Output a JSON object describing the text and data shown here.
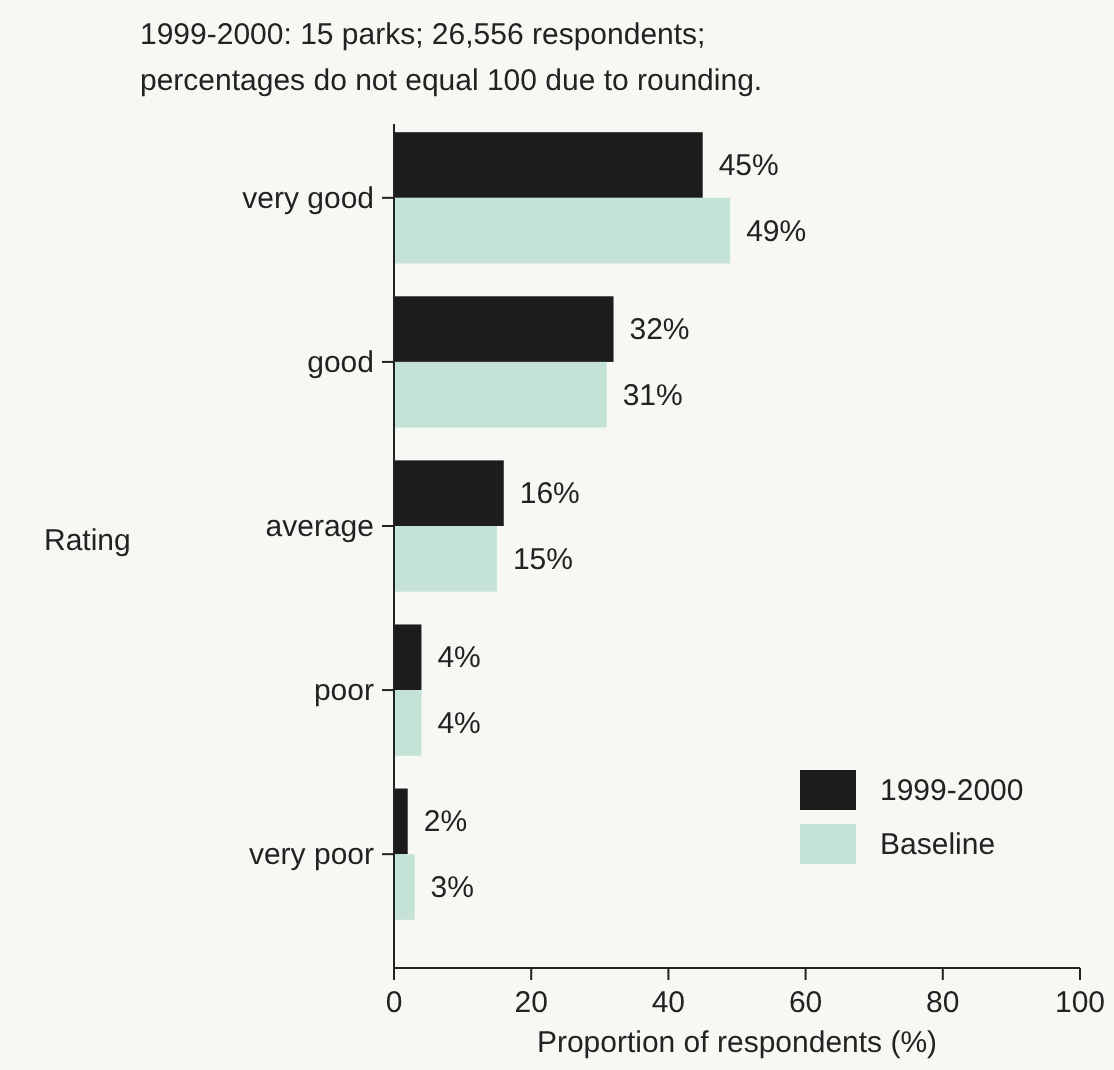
{
  "chart_data": {
    "type": "bar",
    "orientation": "horizontal",
    "title": "1999-2000:  15 parks; 26,556 respondents;",
    "subtitle": "percentages do not equal 100 due to rounding.",
    "ylabel": "Rating",
    "xlabel": "Proportion of respondents (%)",
    "categories": [
      "very good",
      "good",
      "average",
      "poor",
      "very poor"
    ],
    "series": [
      {
        "name": "1999-2000",
        "color": "#1c1c1c",
        "values": [
          45,
          32,
          16,
          4,
          2
        ],
        "value_labels": [
          "45%",
          "32%",
          "16%",
          "4%",
          "2%"
        ]
      },
      {
        "name": "Baseline",
        "color": "#c4e2d5",
        "values": [
          49,
          31,
          15,
          4,
          3
        ],
        "value_labels": [
          "49%",
          "31%",
          "15%",
          "4%",
          "3%"
        ]
      }
    ],
    "xlim": [
      0,
      100
    ],
    "xticks": [
      0,
      20,
      40,
      60,
      80,
      100
    ],
    "grid": false,
    "legend": "bottom right"
  }
}
